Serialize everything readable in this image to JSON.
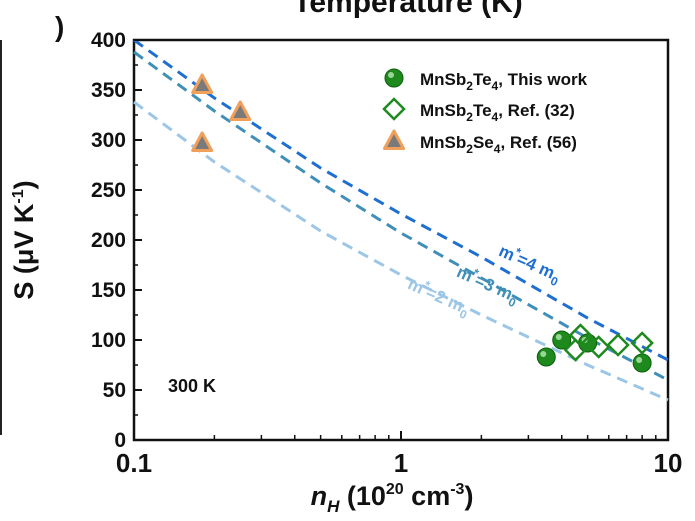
{
  "top_caption": "Temperature (K)",
  "panel_marker": ")",
  "chart_data": {
    "type": "scatter",
    "x_scale": "log",
    "xlim": [
      0.1,
      10
    ],
    "ylim": [
      0,
      400
    ],
    "x_ticks": [
      0.1,
      1,
      10
    ],
    "x_tick_labels": [
      "0.1",
      "1",
      "10"
    ],
    "y_ticks": [
      0,
      50,
      100,
      150,
      200,
      250,
      300,
      350,
      400
    ],
    "y_tick_labels": [
      "0",
      "50",
      "100",
      "150",
      "200",
      "250",
      "300",
      "350",
      "400"
    ],
    "xlabel": {
      "main": "n",
      "sub": "H",
      "rest": " (10",
      "sup1": "20",
      "mid": " cm",
      "sup2": "-3",
      "end": ")"
    },
    "ylabel": {
      "main": "S (μV K",
      "sup": "-1",
      "end": ")"
    },
    "annotation": "300 K",
    "legend_position": "top-right",
    "series": [
      {
        "name": "MnSb2Te4, This work",
        "label_parts": [
          "MnSb",
          "2",
          "Te",
          "4",
          ", This work"
        ],
        "marker": "filled-circle",
        "color": "#1e8a1e",
        "x": [
          3.5,
          4.0,
          5.0,
          8.0
        ],
        "y": [
          83,
          100,
          97,
          77
        ]
      },
      {
        "name": "MnSb2Te4, Ref. (32)",
        "label_parts": [
          "MnSb",
          "2",
          "Te",
          "4",
          ", Ref. (32)"
        ],
        "marker": "open-diamond",
        "color": "#1e8a1e",
        "x": [
          4.5,
          4.7,
          5.5,
          6.5,
          8.0
        ],
        "y": [
          90,
          105,
          93,
          95,
          97
        ]
      },
      {
        "name": "MnSb2Se4, Ref. (56)",
        "label_parts": [
          "MnSb",
          "2",
          "Se",
          "4",
          ", Ref. (56)"
        ],
        "marker": "filled-triangle",
        "color": "#f0a05a",
        "fill": "#7a7a7a",
        "x": [
          0.18,
          0.25,
          0.18
        ],
        "y": [
          355,
          328,
          297
        ]
      }
    ],
    "curves": [
      {
        "label_parts": [
          "m",
          "*",
          "=4 m",
          "0"
        ],
        "color": "#1f6fd1",
        "x": [
          0.1,
          0.2,
          0.5,
          1,
          2,
          5,
          10
        ],
        "y": [
          400,
          342,
          272,
          226,
          183,
          122,
          80
        ]
      },
      {
        "label_parts": [
          "m",
          "*",
          "=3 m",
          "0"
        ],
        "color": "#3f8fb8",
        "x": [
          0.1,
          0.2,
          0.5,
          1,
          2,
          5,
          10
        ],
        "y": [
          388,
          329,
          257,
          207,
          162,
          102,
          60
        ]
      },
      {
        "label_parts": [
          "m",
          "*",
          "=2 m",
          "0"
        ],
        "color": "#9cc6e6",
        "x": [
          0.1,
          0.2,
          0.5,
          1,
          2,
          5,
          10
        ],
        "y": [
          338,
          278,
          209,
          165,
          125,
          75,
          40
        ]
      }
    ]
  }
}
